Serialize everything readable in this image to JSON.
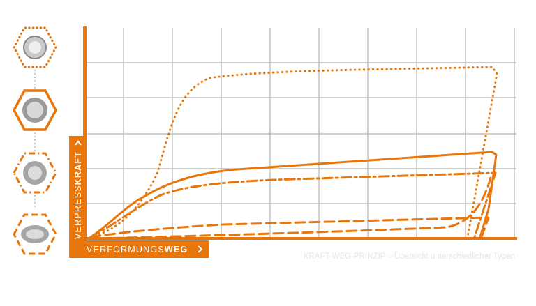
{
  "y_axis_label": {
    "light": "VERPRESS",
    "bold": "KRAFT"
  },
  "x_axis_label": {
    "light": "VERFORMUNGS",
    "bold": "WEG"
  },
  "caption": "KRAFT-WEG-PRINZIP – Übersicht unterschiedlicher Typen"
}
